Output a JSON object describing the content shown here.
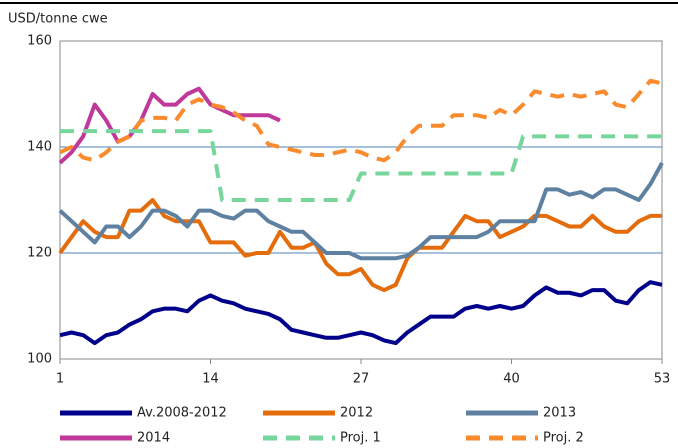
{
  "chart_data": {
    "type": "line",
    "y_label": "USD/tonne cwe",
    "x": [
      1,
      2,
      3,
      4,
      5,
      6,
      7,
      8,
      9,
      10,
      11,
      12,
      13,
      14,
      15,
      16,
      17,
      18,
      19,
      20,
      21,
      22,
      23,
      24,
      25,
      26,
      27,
      28,
      29,
      30,
      31,
      32,
      33,
      34,
      35,
      36,
      37,
      38,
      39,
      40,
      41,
      42,
      43,
      44,
      45,
      46,
      47,
      48,
      49,
      50,
      51,
      52,
      53
    ],
    "xlim": [
      1,
      53
    ],
    "xticks": [
      1,
      14,
      27,
      40,
      53
    ],
    "ylim": [
      100,
      160
    ],
    "yticks": [
      100,
      120,
      140,
      160
    ],
    "grid": true,
    "series": [
      {
        "name": "Av.2008-2012",
        "color": "#00008b",
        "style": "solid",
        "values": [
          104.5,
          105,
          104.5,
          103,
          104.5,
          105,
          106.5,
          107.5,
          109,
          109.5,
          109.5,
          109,
          111,
          112,
          111,
          110.5,
          109.5,
          109,
          108.5,
          107.5,
          105.5,
          105,
          104.5,
          104,
          104,
          104.5,
          105,
          104.5,
          103.5,
          103,
          105,
          106.5,
          108,
          108,
          108,
          109.5,
          110,
          109.5,
          110,
          109.5,
          110,
          112,
          113.5,
          112.5,
          112.5,
          112,
          113,
          113,
          111,
          110.5,
          113,
          114.5,
          114
        ]
      },
      {
        "name": "2012",
        "color": "#e46c0a",
        "style": "solid",
        "values": [
          120,
          123,
          126,
          124,
          123,
          123,
          128,
          128,
          130,
          127,
          126,
          126,
          126,
          122,
          122,
          122,
          119.5,
          120,
          120,
          124,
          121,
          121,
          122,
          118,
          116,
          116,
          117,
          114,
          113,
          114,
          119,
          121,
          121,
          121,
          124,
          127,
          126,
          126,
          123,
          124,
          125,
          127,
          127,
          126,
          125,
          125,
          127,
          125,
          124,
          124,
          126,
          127,
          127
        ]
      },
      {
        "name": "2013",
        "color": "#5f81a1",
        "style": "solid",
        "values": [
          128,
          126,
          124,
          122,
          125,
          125,
          123,
          125,
          128,
          128,
          127,
          125,
          128,
          128,
          127,
          126.5,
          128,
          128,
          126,
          125,
          124,
          124,
          122,
          120,
          120,
          120,
          119,
          119,
          119,
          119,
          119.5,
          121,
          123,
          123,
          123,
          123,
          123,
          124,
          126,
          126,
          126,
          126,
          132,
          132,
          131,
          131.5,
          130.5,
          132,
          132,
          131,
          130,
          133,
          137
        ]
      },
      {
        "name": "2014",
        "color": "#c0389a",
        "style": "solid",
        "values": [
          137,
          139,
          142,
          148,
          145,
          141,
          142,
          145,
          150,
          148,
          148,
          150,
          151,
          148,
          147,
          146,
          146,
          146,
          146,
          145,
          null,
          null,
          null,
          null,
          null,
          null,
          null,
          null,
          null,
          null,
          null,
          null,
          null,
          null,
          null,
          null,
          null,
          null,
          null,
          null,
          null,
          null,
          null,
          null,
          null,
          null,
          null,
          null,
          null,
          null,
          null,
          null,
          null
        ]
      },
      {
        "name": "Proj. 1",
        "color": "#77d69b",
        "style": "dashed",
        "values": [
          143,
          143,
          143,
          143,
          143,
          143,
          143,
          143,
          143,
          143,
          143,
          143,
          143,
          143,
          130,
          130,
          130,
          130,
          130,
          130,
          130,
          130,
          130,
          130,
          130,
          130,
          135,
          135,
          135,
          135,
          135,
          135,
          135,
          135,
          135,
          135,
          135,
          135,
          135,
          135,
          142,
          142,
          142,
          142,
          142,
          142,
          142,
          142,
          142,
          142,
          142,
          142,
          142
        ]
      },
      {
        "name": "Proj. 2",
        "color": "#f98b2c",
        "style": "dashed",
        "values": [
          139,
          140,
          138,
          137.5,
          139,
          141,
          142,
          145,
          145.5,
          145.5,
          145,
          148,
          149,
          148,
          147.5,
          146.5,
          145,
          144,
          140.5,
          140,
          139.5,
          139,
          138.5,
          138.5,
          139,
          139.5,
          139,
          138,
          137.5,
          139,
          142,
          144,
          144,
          144,
          146,
          146,
          146,
          145.5,
          147,
          146,
          148,
          150.5,
          150,
          149.5,
          150,
          149.5,
          150,
          150.5,
          148,
          147.5,
          150,
          152.5,
          152
        ]
      }
    ]
  }
}
